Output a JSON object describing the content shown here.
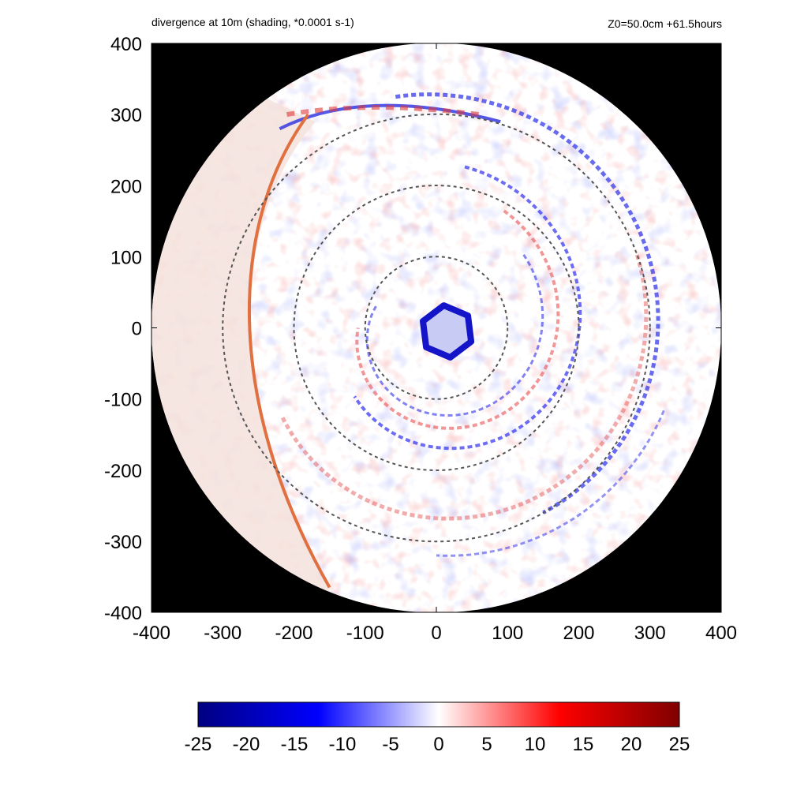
{
  "chart_data": {
    "type": "heatmap",
    "title": "divergence at 10m (shading, *0.0001 s-1)",
    "subtitle": "Z0=50.0cm  +61.5hours",
    "xlim": [
      -400,
      400
    ],
    "ylim": [
      -400,
      400
    ],
    "x_ticks": [
      -400,
      -300,
      -200,
      -100,
      0,
      100,
      200,
      300,
      400
    ],
    "y_ticks": [
      -400,
      -300,
      -200,
      -100,
      0,
      100,
      200,
      300,
      400
    ],
    "domain_radius": 400,
    "background_color": "#000000",
    "reference_circles_radius": [
      100,
      200,
      300
    ],
    "colorbar": {
      "range": [
        -25,
        25
      ],
      "ticks": [
        -25,
        -20,
        -15,
        -10,
        -5,
        0,
        5,
        10,
        15,
        20,
        25
      ],
      "colors": [
        "#000080",
        "#0000ff",
        "#ffffff",
        "#ff0000",
        "#800000"
      ]
    },
    "features": [
      {
        "kind": "eyewall_convergence_ring",
        "center": [
          15,
          -5
        ],
        "radius": 35,
        "value": -20
      },
      {
        "kind": "spiral_band",
        "value": -12
      },
      {
        "kind": "spiral_band",
        "value": 12
      },
      {
        "kind": "convergence_line",
        "value": 12
      }
    ]
  }
}
